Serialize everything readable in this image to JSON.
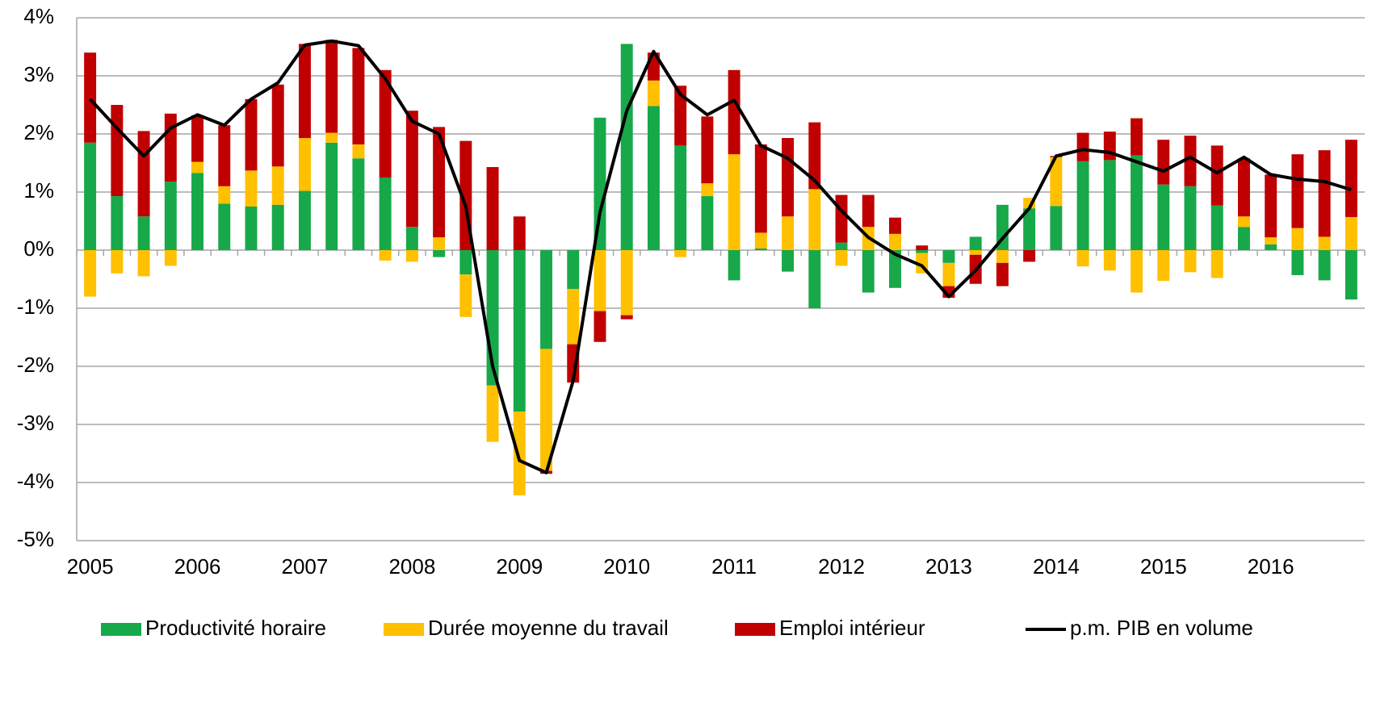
{
  "chart_data": {
    "type": "bar",
    "stacked": true,
    "legend": "bottom",
    "grid": true,
    "categories": [
      "2005",
      null,
      null,
      null,
      "2006",
      null,
      null,
      null,
      "2007",
      null,
      null,
      null,
      "2008",
      null,
      null,
      null,
      "2009",
      null,
      null,
      null,
      "2010",
      null,
      null,
      null,
      "2011",
      null,
      null,
      null,
      "2012",
      null,
      null,
      null,
      "2013",
      null,
      null,
      null,
      "2014",
      null,
      null,
      null,
      "2015",
      null,
      null,
      null,
      "2016",
      null,
      null,
      null
    ],
    "ylim": [
      -5,
      4
    ],
    "yticks": [
      {
        "value": -5,
        "label": "-5%"
      },
      {
        "value": -4,
        "label": "-4%"
      },
      {
        "value": -3,
        "label": "-3%"
      },
      {
        "value": -2,
        "label": "-2%"
      },
      {
        "value": -1,
        "label": "-1%"
      },
      {
        "value": 0,
        "label": "0%"
      },
      {
        "value": 1,
        "label": "1%"
      },
      {
        "value": 2,
        "label": "2%"
      },
      {
        "value": 3,
        "label": "3%"
      },
      {
        "value": 4,
        "label": "4%"
      }
    ],
    "series": [
      {
        "name": "Productivité horaire",
        "color": "#17a84a",
        "values": [
          1.85,
          0.93,
          0.58,
          1.18,
          1.33,
          0.8,
          0.75,
          0.78,
          1.02,
          1.85,
          1.58,
          1.25,
          0.4,
          -0.12,
          -0.42,
          -2.33,
          -2.78,
          -1.7,
          -0.67,
          2.28,
          3.55,
          2.48,
          1.8,
          0.93,
          -0.52,
          0.03,
          -0.37,
          -1.0,
          0.13,
          -0.73,
          -0.65,
          -0.05,
          -0.22,
          0.23,
          0.78,
          0.72,
          0.76,
          1.53,
          1.55,
          1.63,
          1.13,
          1.1,
          0.77,
          0.4,
          0.1,
          -0.43,
          -0.52,
          -0.85
        ]
      },
      {
        "name": "Durée moyenne du travail",
        "color": "#ffc000",
        "values": [
          -0.8,
          -0.4,
          -0.45,
          -0.27,
          0.19,
          0.3,
          0.62,
          0.66,
          0.91,
          0.17,
          0.24,
          -0.18,
          -0.2,
          0.22,
          -0.73,
          -0.97,
          -1.44,
          -2.1,
          -0.95,
          -1.05,
          -1.12,
          0.44,
          -0.12,
          0.22,
          1.65,
          0.27,
          0.58,
          1.05,
          -0.27,
          0.4,
          0.28,
          -0.35,
          -0.4,
          -0.08,
          -0.22,
          0.18,
          0.84,
          -0.28,
          -0.35,
          -0.73,
          -0.53,
          -0.38,
          -0.48,
          0.18,
          0.12,
          0.38,
          0.23,
          0.57
        ]
      },
      {
        "name": "Emploi intérieur",
        "color": "#c00000",
        "values": [
          1.55,
          1.57,
          1.47,
          1.17,
          0.8,
          1.05,
          1.23,
          1.41,
          1.62,
          1.6,
          1.66,
          1.85,
          2.0,
          1.9,
          1.88,
          1.43,
          0.58,
          -0.05,
          -0.66,
          -0.53,
          -0.07,
          0.48,
          1.03,
          1.15,
          1.45,
          1.52,
          1.35,
          1.15,
          0.82,
          0.55,
          0.28,
          0.08,
          -0.2,
          -0.5,
          -0.4,
          -0.2,
          0.02,
          0.49,
          0.49,
          0.64,
          0.77,
          0.87,
          1.03,
          1.0,
          1.08,
          1.27,
          1.49,
          1.33
        ]
      },
      {
        "name": "p.m. PIB en volume",
        "color": "#000000",
        "type": "line",
        "values": [
          2.6,
          2.1,
          1.62,
          2.1,
          2.33,
          2.15,
          2.6,
          2.88,
          3.53,
          3.6,
          3.52,
          2.95,
          2.22,
          2.0,
          0.75,
          -2.0,
          -3.62,
          -3.83,
          -2.25,
          0.65,
          2.4,
          3.42,
          2.68,
          2.33,
          2.58,
          1.8,
          1.58,
          1.2,
          0.68,
          0.22,
          -0.07,
          -0.27,
          -0.8,
          -0.35,
          0.2,
          0.72,
          1.62,
          1.73,
          1.68,
          1.52,
          1.36,
          1.6,
          1.33,
          1.6,
          1.3,
          1.22,
          1.18,
          1.04
        ]
      }
    ]
  }
}
